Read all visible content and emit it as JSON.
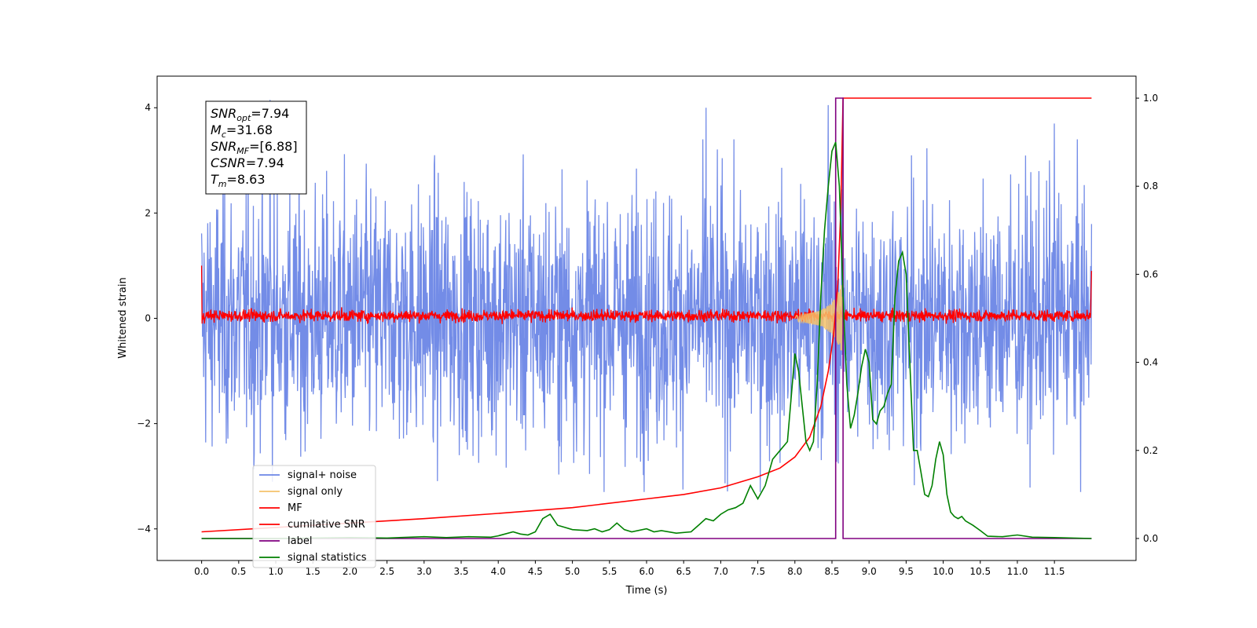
{
  "chart_data": {
    "type": "line",
    "xlabel": "Time (s)",
    "ylabel": "Whitened strain",
    "xlim": [
      -0.6,
      12.6
    ],
    "ylim": [
      -4.6,
      4.6
    ],
    "ylim_right": [
      -0.05,
      1.05
    ],
    "x_ticks": [
      0.0,
      0.5,
      1.0,
      1.5,
      2.0,
      2.5,
      3.0,
      3.5,
      4.0,
      4.5,
      5.0,
      5.5,
      6.0,
      6.5,
      7.0,
      7.5,
      8.0,
      8.5,
      9.0,
      9.5,
      10.0,
      10.5,
      11.0,
      11.5
    ],
    "x_tick_labels": [
      "0.0",
      "0.5",
      "1.0",
      "1.5",
      "2.0",
      "2.5",
      "3.0",
      "3.5",
      "4.0",
      "4.5",
      "5.0",
      "5.5",
      "6.0",
      "6.5",
      "7.0",
      "7.5",
      "8.0",
      "8.5",
      "9.0",
      "9.5",
      "10.0",
      "10.5",
      "11.0",
      "11.5"
    ],
    "y_ticks": [
      -4,
      -2,
      0,
      2,
      4
    ],
    "y_tick_labels": [
      "−4",
      "−2",
      "0",
      "2",
      "4"
    ],
    "y_right_ticks": [
      0.0,
      0.2,
      0.4,
      0.6,
      0.8,
      1.0
    ],
    "y_right_tick_labels": [
      "0.0",
      "0.2",
      "0.4",
      "0.6",
      "0.8",
      "1.0"
    ],
    "legend_position": "lower-left",
    "legend": [
      {
        "name": "signal+ noise",
        "color": "#6b86e6"
      },
      {
        "name": "signal only",
        "color": "#f5c26b"
      },
      {
        "name": "MF",
        "color": "#ff0000"
      },
      {
        "name": "cumilative SNR",
        "color": "#ff0000"
      },
      {
        "name": "label",
        "color": "#800080"
      },
      {
        "name": "signal statistics",
        "color": "#008000"
      }
    ],
    "annotations": [
      {
        "base": "SNR",
        "sub": "opt",
        "value": "=7.94"
      },
      {
        "base": "M",
        "sub": "c",
        "value": "=31.68"
      },
      {
        "base": "SNR",
        "sub": "MF",
        "value": "=[6.88]"
      },
      {
        "base": "CSNR",
        "sub": "",
        "value": "=7.94"
      },
      {
        "base": "T",
        "sub": "m",
        "value": "=8.63"
      }
    ],
    "series": [
      {
        "name": "signal+ noise",
        "axis": "left",
        "style": "noise band",
        "x_range": [
          0.0,
          12.0
        ],
        "approx_envelope": [
          -2.6,
          2.6
        ],
        "approx_peaks": [
          [
            0.92,
            4.15
          ],
          [
            6.8,
            4.0
          ],
          [
            8.45,
            4.05
          ],
          [
            11.5,
            3.7
          ]
        ]
      },
      {
        "name": "signal only",
        "axis": "left",
        "style": "chirp",
        "x": [
          8.0,
          8.2,
          8.35,
          8.45,
          8.5,
          8.55,
          8.6,
          8.63,
          8.65
        ],
        "amplitude": [
          0.05,
          0.1,
          0.15,
          0.25,
          0.3,
          0.4,
          0.55,
          0.65,
          0.1
        ]
      },
      {
        "name": "MF",
        "axis": "left",
        "style": "noise band",
        "x_range": [
          0.0,
          12.0
        ],
        "approx_envelope": [
          -0.2,
          0.3
        ],
        "edge_values": [
          [
            0.0,
            1.0
          ],
          [
            12.0,
            0.9
          ]
        ]
      },
      {
        "name": "cumilative SNR",
        "axis": "right",
        "x": [
          0.0,
          1.0,
          2.0,
          3.0,
          4.0,
          5.0,
          6.0,
          6.5,
          7.0,
          7.5,
          7.8,
          8.0,
          8.2,
          8.35,
          8.45,
          8.52,
          8.58,
          8.62,
          8.65,
          12.0
        ],
        "values": [
          0.015,
          0.025,
          0.035,
          0.045,
          0.057,
          0.07,
          0.09,
          0.1,
          0.115,
          0.14,
          0.16,
          0.185,
          0.23,
          0.3,
          0.38,
          0.46,
          0.58,
          0.75,
          1.0,
          1.0
        ]
      },
      {
        "name": "label",
        "axis": "right",
        "x": [
          0.0,
          8.55,
          8.55,
          8.65,
          8.65,
          12.0
        ],
        "values": [
          0.0,
          0.0,
          1.0,
          1.0,
          0.0,
          0.0
        ]
      },
      {
        "name": "signal statistics",
        "axis": "right",
        "x": [
          0.0,
          0.5,
          1.0,
          1.5,
          2.0,
          2.5,
          3.0,
          3.3,
          3.6,
          3.9,
          4.0,
          4.2,
          4.3,
          4.4,
          4.5,
          4.6,
          4.7,
          4.8,
          4.9,
          5.0,
          5.2,
          5.3,
          5.4,
          5.5,
          5.6,
          5.7,
          5.8,
          6.0,
          6.1,
          6.2,
          6.4,
          6.6,
          6.7,
          6.8,
          6.9,
          7.0,
          7.1,
          7.2,
          7.3,
          7.4,
          7.5,
          7.6,
          7.7,
          7.8,
          7.9,
          8.0,
          8.05,
          8.1,
          8.15,
          8.2,
          8.25,
          8.3,
          8.35,
          8.4,
          8.45,
          8.5,
          8.55,
          8.6,
          8.65,
          8.7,
          8.75,
          8.8,
          8.85,
          8.9,
          8.95,
          9.0,
          9.05,
          9.1,
          9.15,
          9.2,
          9.25,
          9.3,
          9.35,
          9.4,
          9.45,
          9.5,
          9.55,
          9.6,
          9.65,
          9.7,
          9.75,
          9.8,
          9.85,
          9.9,
          9.95,
          10.0,
          10.05,
          10.1,
          10.15,
          10.2,
          10.25,
          10.3,
          10.35,
          10.4,
          10.5,
          10.6,
          10.8,
          11.0,
          11.2,
          11.5,
          12.0
        ],
        "values": [
          0.0,
          0.0,
          0.0,
          0.001,
          0.002,
          0.001,
          0.004,
          0.002,
          0.004,
          0.003,
          0.006,
          0.015,
          0.01,
          0.008,
          0.015,
          0.045,
          0.055,
          0.03,
          0.025,
          0.02,
          0.018,
          0.022,
          0.015,
          0.02,
          0.035,
          0.02,
          0.015,
          0.022,
          0.015,
          0.018,
          0.012,
          0.015,
          0.03,
          0.045,
          0.04,
          0.055,
          0.065,
          0.07,
          0.08,
          0.12,
          0.09,
          0.12,
          0.18,
          0.2,
          0.22,
          0.42,
          0.38,
          0.3,
          0.22,
          0.2,
          0.22,
          0.35,
          0.55,
          0.7,
          0.8,
          0.88,
          0.9,
          0.8,
          0.55,
          0.35,
          0.25,
          0.28,
          0.33,
          0.39,
          0.43,
          0.4,
          0.27,
          0.26,
          0.29,
          0.3,
          0.33,
          0.35,
          0.55,
          0.63,
          0.65,
          0.6,
          0.4,
          0.2,
          0.2,
          0.15,
          0.1,
          0.095,
          0.12,
          0.18,
          0.22,
          0.19,
          0.1,
          0.06,
          0.05,
          0.045,
          0.05,
          0.04,
          0.035,
          0.03,
          0.018,
          0.005,
          0.004,
          0.008,
          0.003,
          0.002,
          0.0
        ]
      }
    ]
  }
}
